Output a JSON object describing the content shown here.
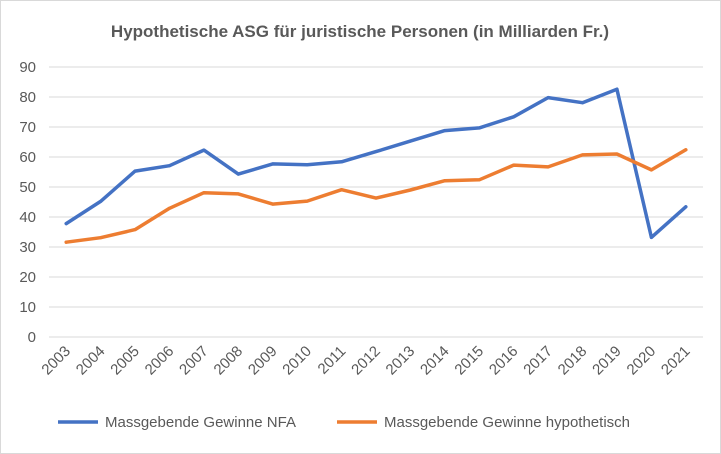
{
  "chart_data": {
    "type": "line",
    "title": "Hypothetische ASG für juristische Personen (in Milliarden Fr.)",
    "xlabel": "",
    "ylabel": "",
    "categories": [
      "2003",
      "2004",
      "2005",
      "2006",
      "2007",
      "2008",
      "2009",
      "2010",
      "2011",
      "2012",
      "2013",
      "2014",
      "2015",
      "2016",
      "2017",
      "2018",
      "2019",
      "2020",
      "2021"
    ],
    "ylim": [
      0,
      90
    ],
    "yticks": [
      0,
      10,
      20,
      30,
      40,
      50,
      60,
      70,
      80,
      90
    ],
    "grid": true,
    "legend_position": "bottom",
    "series": [
      {
        "name": "Massgebende Gewinne NFA",
        "color": "#4472c4",
        "values": [
          37.8,
          45.2,
          55.3,
          57.1,
          62.3,
          54.3,
          57.7,
          57.4,
          58.4,
          61.8,
          65.3,
          68.8,
          69.7,
          73.4,
          79.8,
          78.1,
          82.6,
          33.2,
          43.4
        ]
      },
      {
        "name": "Massgebende Gewinne hypothetisch",
        "color": "#ed7d31",
        "values": [
          31.6,
          33.1,
          35.8,
          42.9,
          48.1,
          47.7,
          44.3,
          45.3,
          49.1,
          46.3,
          49.0,
          52.1,
          52.4,
          57.3,
          56.7,
          60.7,
          61.0,
          55.7,
          62.4
        ]
      }
    ]
  }
}
